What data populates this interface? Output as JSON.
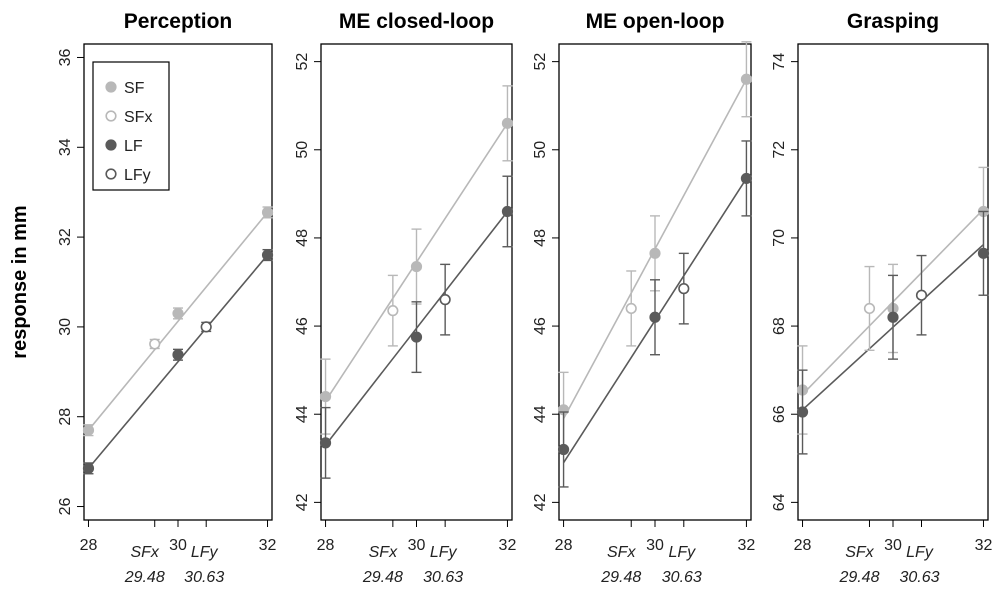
{
  "y_axis_label": "response in mm",
  "colors": {
    "light": "#b8b8b8",
    "dark": "#5a5a5a",
    "frame": "#000000"
  },
  "legend": [
    {
      "label": "SF",
      "color": "#b8b8b8",
      "filled": true
    },
    {
      "label": "SFx",
      "color": "#b8b8b8",
      "filled": false
    },
    {
      "label": "LF",
      "color": "#5a5a5a",
      "filled": true
    },
    {
      "label": "LFy",
      "color": "#5a5a5a",
      "filled": false
    }
  ],
  "chart_data": [
    {
      "type": "scatter",
      "title": "Perception",
      "xlim": [
        27.9,
        32.1
      ],
      "ylim": [
        25.7,
        36.3
      ],
      "x_ticks": [
        "28",
        "30",
        "32"
      ],
      "y_ticks": [
        "26",
        "28",
        "30",
        "32",
        "34",
        "36"
      ],
      "x_annotations": [
        {
          "name": "SFx",
          "value": "29.48"
        },
        {
          "name": "LFy",
          "value": "30.63"
        }
      ],
      "series": [
        {
          "name": "SF",
          "x": [
            28,
            30,
            32
          ],
          "y": [
            27.7,
            30.3,
            32.55
          ],
          "err": [
            0.12,
            0.12,
            0.12
          ]
        },
        {
          "name": "SFx",
          "x": [
            29.48
          ],
          "y": [
            29.62
          ],
          "err": [
            0.1
          ]
        },
        {
          "name": "LF",
          "x": [
            28,
            30,
            32
          ],
          "y": [
            26.85,
            29.38,
            31.6
          ],
          "err": [
            0.12,
            0.12,
            0.12
          ]
        },
        {
          "name": "LFy",
          "x": [
            30.63
          ],
          "y": [
            30.0
          ],
          "err": [
            0.1
          ]
        }
      ],
      "fit_lines": [
        {
          "name": "SF",
          "from": [
            28,
            27.7
          ],
          "to": [
            32,
            32.55
          ]
        },
        {
          "name": "LF",
          "from": [
            28,
            26.85
          ],
          "to": [
            32,
            31.6
          ]
        }
      ]
    },
    {
      "type": "scatter",
      "title": "ME closed-loop",
      "xlim": [
        27.9,
        32.1
      ],
      "ylim": [
        41.6,
        52.4
      ],
      "x_ticks": [
        "28",
        "30",
        "32"
      ],
      "y_ticks": [
        "42",
        "44",
        "46",
        "48",
        "50",
        "52"
      ],
      "x_annotations": [
        {
          "name": "SFx",
          "value": "29.48"
        },
        {
          "name": "LFy",
          "value": "30.63"
        }
      ],
      "series": [
        {
          "name": "SF",
          "x": [
            28,
            30,
            32
          ],
          "y": [
            44.4,
            47.35,
            50.6
          ],
          "err": [
            0.85,
            0.85,
            0.85
          ]
        },
        {
          "name": "SFx",
          "x": [
            29.48
          ],
          "y": [
            46.35
          ],
          "err": [
            0.8
          ]
        },
        {
          "name": "LF",
          "x": [
            28,
            30,
            32
          ],
          "y": [
            43.35,
            45.75,
            48.6
          ],
          "err": [
            0.8,
            0.8,
            0.8
          ]
        },
        {
          "name": "LFy",
          "x": [
            30.63
          ],
          "y": [
            46.6
          ],
          "err": [
            0.8
          ]
        }
      ],
      "fit_lines": [
        {
          "name": "SF",
          "from": [
            28,
            44.3
          ],
          "to": [
            32,
            50.6
          ]
        },
        {
          "name": "LF",
          "from": [
            28,
            43.3
          ],
          "to": [
            32,
            48.6
          ]
        }
      ]
    },
    {
      "type": "scatter",
      "title": "ME open-loop",
      "xlim": [
        27.9,
        32.1
      ],
      "ylim": [
        41.6,
        52.4
      ],
      "x_ticks": [
        "28",
        "30",
        "32"
      ],
      "y_ticks": [
        "42",
        "44",
        "46",
        "48",
        "50",
        "52"
      ],
      "x_annotations": [
        {
          "name": "SFx",
          "value": "29.48"
        },
        {
          "name": "LFy",
          "value": "30.63"
        }
      ],
      "series": [
        {
          "name": "SF",
          "x": [
            28,
            30,
            32
          ],
          "y": [
            44.1,
            47.65,
            51.6
          ],
          "err": [
            0.85,
            0.85,
            0.85
          ]
        },
        {
          "name": "SFx",
          "x": [
            29.48
          ],
          "y": [
            46.4
          ],
          "err": [
            0.85
          ]
        },
        {
          "name": "LF",
          "x": [
            28,
            30,
            32
          ],
          "y": [
            43.2,
            46.2,
            49.35
          ],
          "err": [
            0.85,
            0.85,
            0.85
          ]
        },
        {
          "name": "LFy",
          "x": [
            30.63
          ],
          "y": [
            46.85
          ],
          "err": [
            0.8
          ]
        }
      ],
      "fit_lines": [
        {
          "name": "SF",
          "from": [
            28,
            43.9
          ],
          "to": [
            32,
            51.6
          ]
        },
        {
          "name": "LF",
          "from": [
            28,
            42.9
          ],
          "to": [
            32,
            49.35
          ]
        }
      ]
    },
    {
      "type": "scatter",
      "title": "Grasping",
      "xlim": [
        27.9,
        32.1
      ],
      "ylim": [
        63.6,
        74.4
      ],
      "x_ticks": [
        "28",
        "30",
        "32"
      ],
      "y_ticks": [
        "64",
        "66",
        "68",
        "70",
        "72",
        "74"
      ],
      "x_annotations": [
        {
          "name": "SFx",
          "value": "29.48"
        },
        {
          "name": "LFy",
          "value": "30.63"
        }
      ],
      "series": [
        {
          "name": "SF",
          "x": [
            28,
            30,
            32
          ],
          "y": [
            66.55,
            68.4,
            70.6
          ],
          "err": [
            1.0,
            1.0,
            1.0
          ]
        },
        {
          "name": "SFx",
          "x": [
            29.48
          ],
          "y": [
            68.4
          ],
          "err": [
            0.95
          ]
        },
        {
          "name": "LF",
          "x": [
            28,
            30,
            32
          ],
          "y": [
            66.05,
            68.2,
            69.65
          ],
          "err": [
            0.95,
            0.95,
            0.95
          ]
        },
        {
          "name": "LFy",
          "x": [
            30.63
          ],
          "y": [
            68.7
          ],
          "err": [
            0.9
          ]
        }
      ],
      "fit_lines": [
        {
          "name": "SF",
          "from": [
            28,
            66.45
          ],
          "to": [
            32,
            70.65
          ]
        },
        {
          "name": "LF",
          "from": [
            28,
            66.1
          ],
          "to": [
            32,
            69.85
          ]
        }
      ]
    }
  ]
}
